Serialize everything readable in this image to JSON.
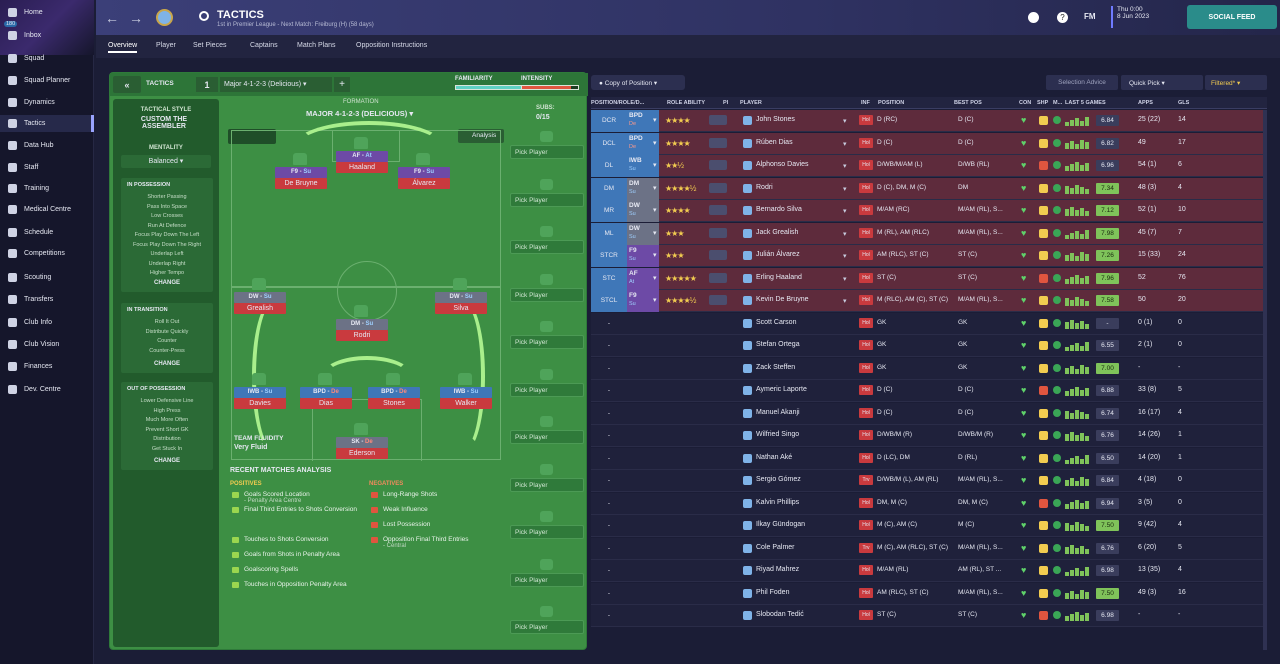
{
  "nav": [
    {
      "label": "Home"
    },
    {
      "label": "Inbox",
      "badge": "180"
    },
    {
      "label": "Squad"
    },
    {
      "label": "Squad Planner"
    },
    {
      "label": "Dynamics"
    },
    {
      "label": "Tactics"
    },
    {
      "label": "Data Hub"
    },
    {
      "label": "Staff"
    },
    {
      "label": "Training"
    },
    {
      "label": "Medical Centre"
    },
    {
      "label": "Schedule"
    },
    {
      "label": "Competitions"
    },
    {
      "label": "Scouting"
    },
    {
      "label": "Transfers"
    },
    {
      "label": "Club Info"
    },
    {
      "label": "Club Vision"
    },
    {
      "label": "Finances"
    },
    {
      "label": "Dev. Centre"
    }
  ],
  "header": {
    "title": "TACTICS",
    "subtitle": "1st in Premier League - Next Match: Freiburg (H) (58 days)",
    "fm": "FM",
    "date_day": "Thu 0:00",
    "date": "8 Jun 2023",
    "social_feed": "SOCIAL FEED",
    "tabs": [
      "Overview",
      "Player",
      "Set Pieces",
      "Captains",
      "Match Plans",
      "Opposition Instructions"
    ]
  },
  "tactics": {
    "label": "TACTICS",
    "slot": "1",
    "formation_select": "Major 4-1-2-3 (Delicious)",
    "familiarity_label": "FAMILIARITY",
    "intensity_label": "INTENSITY",
    "familiarity": 0.92,
    "intensity": 0.88,
    "formation_label": "FORMATION",
    "formation_name": "MAJOR 4-1-2-3 (DELICIOUS)",
    "subs_label": "SUBS:",
    "subs_count": "0/15",
    "analysis_btn": "Analysis",
    "pick_player": "Pick Player",
    "team_fluidity_label": "TEAM FLUIDITY",
    "team_fluidity": "Very Fluid",
    "style_label": "TACTICAL STYLE",
    "style_name": "CUSTOM THE ASSEMBLER",
    "mentality_label": "MENTALITY",
    "mentality": "Balanced",
    "in_possession_label": "IN POSSESSION",
    "in_possession": [
      "Shorter Passing",
      "Pass Into Space",
      "Low Crosses",
      "Run At Defence",
      "Focus Play Down The Left",
      "Focus Play Down The Right",
      "Underlap Left",
      "Underlap Right",
      "Higher Tempo"
    ],
    "in_transition_label": "IN TRANSITION",
    "in_transition": [
      "Roll It Out",
      "Distribute Quickly",
      "Counter",
      "Counter-Press"
    ],
    "out_of_possession_label": "OUT OF POSSESSION",
    "out_of_possession": [
      "Lower Defensive Line",
      "High Press",
      "Much More Often",
      "Prevent Short GK",
      "Distribution",
      "Get Stuck In"
    ],
    "change": "CHANGE"
  },
  "pitch_players": [
    {
      "role": "F9",
      "duty": "Su",
      "name": "De Bruyne",
      "kind": "att"
    },
    {
      "role": "AF",
      "duty": "At",
      "name": "Haaland",
      "kind": "att"
    },
    {
      "role": "F9",
      "duty": "Su",
      "name": "Álvarez",
      "kind": "att"
    },
    {
      "role": "DW",
      "duty": "Su",
      "name": "Grealish",
      "kind": "mid"
    },
    {
      "role": "DW",
      "duty": "Su",
      "name": "Silva",
      "kind": "mid"
    },
    {
      "role": "DM",
      "duty": "Su",
      "name": "Rodri",
      "kind": "dm"
    },
    {
      "role": "IWB",
      "duty": "Su",
      "name": "Davies",
      "kind": "def"
    },
    {
      "role": "BPD",
      "duty": "De",
      "name": "Dias",
      "kind": "def"
    },
    {
      "role": "BPD",
      "duty": "De",
      "name": "Stones",
      "kind": "def"
    },
    {
      "role": "IWB",
      "duty": "Su",
      "name": "Walker",
      "kind": "def"
    },
    {
      "role": "SK",
      "duty": "De",
      "name": "Ederson",
      "kind": "gk"
    }
  ],
  "analysis": {
    "title": "RECENT MATCHES ANALYSIS",
    "positives_label": "POSITIVES",
    "negatives_label": "NEGATIVES",
    "positives": [
      {
        "t": "Goals Scored Location",
        "s": "- Penalty Area Centre"
      },
      {
        "t": "Final Third Entries to Shots Conversion",
        "s": ""
      },
      {
        "t": "Touches to Shots Conversion",
        "s": ""
      },
      {
        "t": "Goals from Shots in Penalty Area",
        "s": ""
      },
      {
        "t": "Goalscoring Spells",
        "s": ""
      },
      {
        "t": "Touches in Opposition Penalty Area",
        "s": ""
      }
    ],
    "negatives": [
      {
        "t": "Long-Range Shots",
        "s": ""
      },
      {
        "t": "Weak Influence",
        "s": ""
      },
      {
        "t": "Lost Possession",
        "s": ""
      },
      {
        "t": "Opposition Final Third Entries",
        "s": "- Central"
      }
    ]
  },
  "grid": {
    "copy_btn": "Copy of Position",
    "selection_advice": "Selection Advice",
    "quick_pick": "Quick Pick",
    "filtered": "Filtered*",
    "headers": [
      "POSITION/ROLE/D...",
      "ROLE ABILITY",
      "PI",
      "PLAYER",
      "INF",
      "POSITION",
      "BEST POS",
      "CON",
      "SHP",
      "M...",
      "LAST 5 GAMES",
      "APPS",
      "GLS"
    ],
    "rows": [
      {
        "pos": "DCR",
        "role": "BPD",
        "duty": "De",
        "stars": "★★★★",
        "player": "John Stones",
        "inf": "Hol",
        "position": "D (RC)",
        "best": "D (C)",
        "rating": "6.84",
        "apps": "25 (22)",
        "gls": "14",
        "sel": true,
        "rcolor": "#3f77b8"
      },
      {
        "pos": "DCL",
        "role": "BPD",
        "duty": "De",
        "stars": "★★★★",
        "player": "Rúben Dias",
        "inf": "Hol",
        "position": "D (C)",
        "best": "D (C)",
        "rating": "6.82",
        "apps": "49",
        "gls": "17",
        "sel": true,
        "rcolor": "#3f77b8"
      },
      {
        "pos": "DL",
        "role": "IWB",
        "duty": "Su",
        "stars": "★★½",
        "player": "Alphonso Davies",
        "inf": "Hol",
        "position": "D/WB/M/AM (L)",
        "best": "D/WB (RL)",
        "rating": "6.96",
        "apps": "54 (1)",
        "gls": "6",
        "sel": true,
        "rcolor": "#3f77b8"
      },
      {
        "pos": "DM",
        "role": "DM",
        "duty": "Su",
        "stars": "★★★★½",
        "player": "Rodri",
        "inf": "Hol",
        "position": "D (C), DM, M (C)",
        "best": "DM",
        "rating": "7.34",
        "apps": "48 (3)",
        "gls": "4",
        "sel": true,
        "rcolor": "#6c7286"
      },
      {
        "pos": "MR",
        "role": "DW",
        "duty": "Su",
        "stars": "★★★★",
        "player": "Bernardo Silva",
        "inf": "Hol",
        "position": "M/AM (RC)",
        "best": "M/AM (RL), S...",
        "rating": "7.12",
        "apps": "52 (1)",
        "gls": "10",
        "sel": true,
        "rcolor": "#6c7286"
      },
      {
        "pos": "ML",
        "role": "DW",
        "duty": "Su",
        "stars": "★★★",
        "player": "Jack Grealish",
        "inf": "Hol",
        "position": "M (RL), AM (RLC)",
        "best": "M/AM (RL), S...",
        "rating": "7.98",
        "apps": "45 (7)",
        "gls": "7",
        "sel": true,
        "rcolor": "#6c7286"
      },
      {
        "pos": "STCR",
        "role": "F9",
        "duty": "Su",
        "stars": "★★★",
        "player": "Julián Álvarez",
        "inf": "Hol",
        "position": "AM (RLC), ST (C)",
        "best": "ST (C)",
        "rating": "7.26",
        "apps": "15 (33)",
        "gls": "24",
        "sel": true,
        "rcolor": "#6d4aa6"
      },
      {
        "pos": "STC",
        "role": "AF",
        "duty": "At",
        "stars": "★★★★★",
        "player": "Erling Haaland",
        "inf": "Hol",
        "position": "ST (C)",
        "best": "ST (C)",
        "rating": "7.96",
        "apps": "52",
        "gls": "76",
        "sel": true,
        "rcolor": "#6d4aa6"
      },
      {
        "pos": "STCL",
        "role": "F9",
        "duty": "Su",
        "stars": "★★★★½",
        "player": "Kevin De Bruyne",
        "inf": "Hol",
        "position": "M (RLC), AM (C), ST (C)",
        "best": "M/AM (RL), S...",
        "rating": "7.58",
        "apps": "50",
        "gls": "20",
        "sel": true,
        "rcolor": "#6d4aa6"
      },
      {
        "pos": "-",
        "role": "",
        "duty": "",
        "stars": "",
        "player": "Scott Carson",
        "inf": "Hol",
        "position": "GK",
        "best": "GK",
        "rating": "-",
        "apps": "0 (1)",
        "gls": "0",
        "sel": false,
        "rcolor": ""
      },
      {
        "pos": "-",
        "role": "",
        "duty": "",
        "stars": "",
        "player": "Stefan Ortega",
        "inf": "Hol",
        "position": "GK",
        "best": "GK",
        "rating": "6.55",
        "apps": "2 (1)",
        "gls": "0",
        "sel": false,
        "rcolor": ""
      },
      {
        "pos": "-",
        "role": "",
        "duty": "",
        "stars": "",
        "player": "Zack Steffen",
        "inf": "Hol",
        "position": "GK",
        "best": "GK",
        "rating": "7.00",
        "apps": "-",
        "gls": "-",
        "sel": false,
        "rcolor": ""
      },
      {
        "pos": "-",
        "role": "",
        "duty": "",
        "stars": "",
        "player": "Aymeric Laporte",
        "inf": "Hol",
        "position": "D (C)",
        "best": "D (C)",
        "rating": "6.88",
        "apps": "33 (8)",
        "gls": "5",
        "sel": false,
        "rcolor": ""
      },
      {
        "pos": "-",
        "role": "",
        "duty": "",
        "stars": "",
        "player": "Manuel Akanji",
        "inf": "Hol",
        "position": "D (C)",
        "best": "D (C)",
        "rating": "6.74",
        "apps": "16 (17)",
        "gls": "4",
        "sel": false,
        "rcolor": ""
      },
      {
        "pos": "-",
        "role": "",
        "duty": "",
        "stars": "",
        "player": "Wilfried Singo",
        "inf": "Hol",
        "position": "D/WB/M (R)",
        "best": "D/WB/M (R)",
        "rating": "6.76",
        "apps": "14 (26)",
        "gls": "1",
        "sel": false,
        "rcolor": ""
      },
      {
        "pos": "-",
        "role": "",
        "duty": "",
        "stars": "",
        "player": "Nathan Aké",
        "inf": "Hol",
        "position": "D (LC), DM",
        "best": "D (RL)",
        "rating": "6.50",
        "apps": "14 (20)",
        "gls": "1",
        "sel": false,
        "rcolor": ""
      },
      {
        "pos": "-",
        "role": "",
        "duty": "",
        "stars": "",
        "player": "Sergio Gómez",
        "inf": "Trv",
        "position": "D/WB/M (L), AM (RL)",
        "best": "M/AM (RL), S...",
        "rating": "6.84",
        "apps": "4 (18)",
        "gls": "0",
        "sel": false,
        "rcolor": ""
      },
      {
        "pos": "-",
        "role": "",
        "duty": "",
        "stars": "",
        "player": "Kalvin Phillips",
        "inf": "Hol",
        "position": "DM, M (C)",
        "best": "DM, M (C)",
        "rating": "6.94",
        "apps": "3 (5)",
        "gls": "0",
        "sel": false,
        "rcolor": ""
      },
      {
        "pos": "-",
        "role": "",
        "duty": "",
        "stars": "",
        "player": "Ilkay Gündogan",
        "inf": "Hol",
        "position": "M (C), AM (C)",
        "best": "M (C)",
        "rating": "7.50",
        "apps": "9 (42)",
        "gls": "4",
        "sel": false,
        "rcolor": ""
      },
      {
        "pos": "-",
        "role": "",
        "duty": "",
        "stars": "",
        "player": "Cole Palmer",
        "inf": "Trv",
        "position": "M (C), AM (RLC), ST (C)",
        "best": "M/AM (RL), S...",
        "rating": "6.76",
        "apps": "6 (20)",
        "gls": "5",
        "sel": false,
        "rcolor": ""
      },
      {
        "pos": "-",
        "role": "",
        "duty": "",
        "stars": "",
        "player": "Riyad Mahrez",
        "inf": "Hol",
        "position": "M/AM (RL)",
        "best": "AM (RL), ST ...",
        "rating": "6.98",
        "apps": "13 (35)",
        "gls": "4",
        "sel": false,
        "rcolor": ""
      },
      {
        "pos": "-",
        "role": "",
        "duty": "",
        "stars": "",
        "player": "Phil Foden",
        "inf": "Hol",
        "position": "AM (RLC), ST (C)",
        "best": "M/AM (RL), S...",
        "rating": "7.50",
        "apps": "49 (3)",
        "gls": "16",
        "sel": false,
        "rcolor": ""
      },
      {
        "pos": "-",
        "role": "",
        "duty": "",
        "stars": "",
        "player": "Slobodan Tedić",
        "inf": "Hol",
        "position": "ST (C)",
        "best": "ST (C)",
        "rating": "6.98",
        "apps": "-",
        "gls": "-",
        "sel": false,
        "rcolor": ""
      }
    ]
  }
}
